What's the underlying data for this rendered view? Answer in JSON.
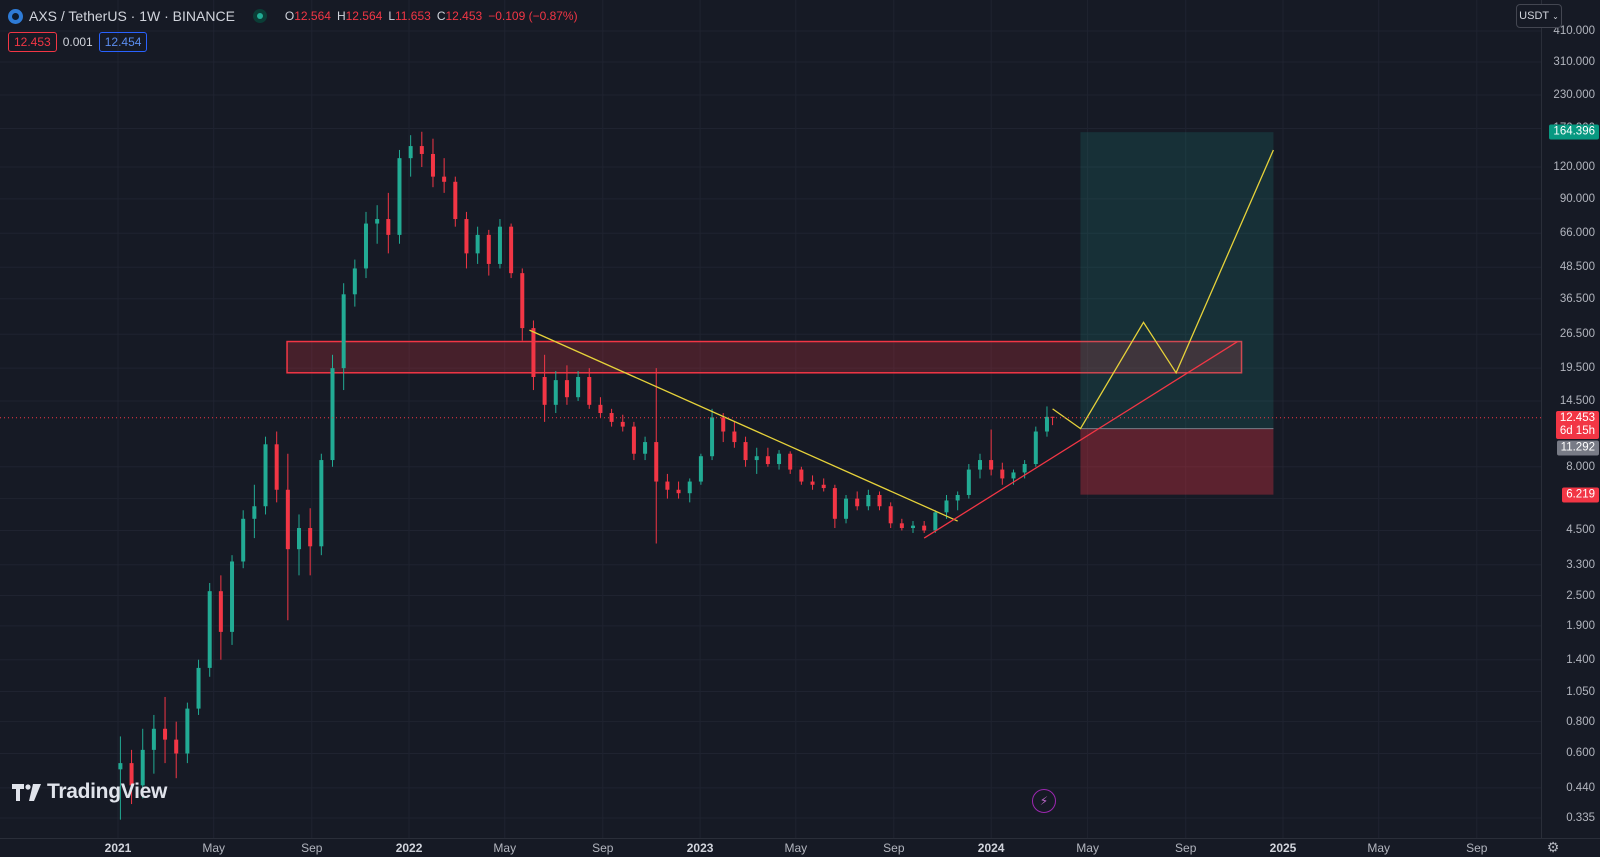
{
  "header": {
    "symbol": "AXS / TetherUS · 1W · BINANCE",
    "ohlc": [
      {
        "key": "O",
        "value": "12.564"
      },
      {
        "key": "H",
        "value": "12.564"
      },
      {
        "key": "L",
        "value": "11.653"
      },
      {
        "key": "C",
        "value": "12.453"
      }
    ],
    "change": "−0.109 (−0.87%)"
  },
  "quote": {
    "sell": "12.453",
    "spread": "0.001",
    "buy": "12.454"
  },
  "currency_button": "USDT",
  "brand": "TradingView",
  "colors": {
    "up": "#22ab94",
    "down": "#f23645",
    "trend_yellow": "#e6d23a",
    "background": "#161a25"
  },
  "price_axis": [
    "410.000",
    "310.000",
    "230.000",
    "170.000",
    "120.000",
    "90.000",
    "66.000",
    "48.500",
    "36.500",
    "26.500",
    "19.500",
    "14.500",
    "8.000",
    "6.000",
    "4.500",
    "3.300",
    "2.500",
    "1.900",
    "1.400",
    "1.050",
    "0.800",
    "0.600",
    "0.440",
    "0.335"
  ],
  "price_tags": {
    "target": "164.396",
    "current": "12.453",
    "countdown": "6d 15h",
    "entry": "11.292",
    "stop": "6.219"
  },
  "time_axis": [
    {
      "label": "2021",
      "bold": true
    },
    {
      "label": "May",
      "bold": false
    },
    {
      "label": "Sep",
      "bold": false
    },
    {
      "label": "2022",
      "bold": true
    },
    {
      "label": "May",
      "bold": false
    },
    {
      "label": "Sep",
      "bold": false
    },
    {
      "label": "2023",
      "bold": true
    },
    {
      "label": "May",
      "bold": false
    },
    {
      "label": "Sep",
      "bold": false
    },
    {
      "label": "2024",
      "bold": true
    },
    {
      "label": "May",
      "bold": false
    },
    {
      "label": "Sep",
      "bold": false
    },
    {
      "label": "2025",
      "bold": true
    },
    {
      "label": "May",
      "bold": false
    },
    {
      "label": "Sep",
      "bold": false
    }
  ],
  "chart_data": {
    "type": "candlestick",
    "symbol": "AXS/USDT",
    "interval": "1W",
    "y_scale": "log",
    "ylim": [
      0.32,
      420
    ],
    "candles": [
      {
        "date": "2021-01-04",
        "o": 0.52,
        "h": 0.7,
        "l": 0.33,
        "c": 0.55
      },
      {
        "date": "2021-01-18",
        "o": 0.55,
        "h": 0.62,
        "l": 0.38,
        "c": 0.45
      },
      {
        "date": "2021-02-01",
        "o": 0.45,
        "h": 0.75,
        "l": 0.4,
        "c": 0.62
      },
      {
        "date": "2021-02-15",
        "o": 0.62,
        "h": 0.85,
        "l": 0.5,
        "c": 0.75
      },
      {
        "date": "2021-03-01",
        "o": 0.75,
        "h": 1.0,
        "l": 0.55,
        "c": 0.68
      },
      {
        "date": "2021-03-15",
        "o": 0.68,
        "h": 0.8,
        "l": 0.48,
        "c": 0.6
      },
      {
        "date": "2021-03-29",
        "o": 0.6,
        "h": 0.95,
        "l": 0.55,
        "c": 0.9
      },
      {
        "date": "2021-04-12",
        "o": 0.9,
        "h": 1.4,
        "l": 0.85,
        "c": 1.3
      },
      {
        "date": "2021-04-26",
        "o": 1.3,
        "h": 2.8,
        "l": 1.2,
        "c": 2.6
      },
      {
        "date": "2021-05-10",
        "o": 2.6,
        "h": 3.0,
        "l": 1.4,
        "c": 1.8
      },
      {
        "date": "2021-05-24",
        "o": 1.8,
        "h": 3.6,
        "l": 1.6,
        "c": 3.4
      },
      {
        "date": "2021-06-07",
        "o": 3.4,
        "h": 5.4,
        "l": 3.2,
        "c": 5.0
      },
      {
        "date": "2021-06-21",
        "o": 5.0,
        "h": 6.8,
        "l": 4.2,
        "c": 5.6
      },
      {
        "date": "2021-07-05",
        "o": 5.6,
        "h": 10.5,
        "l": 5.2,
        "c": 9.8
      },
      {
        "date": "2021-07-19",
        "o": 9.8,
        "h": 11.0,
        "l": 5.8,
        "c": 6.5
      },
      {
        "date": "2021-08-02",
        "o": 6.5,
        "h": 9.0,
        "l": 2.0,
        "c": 3.8
      },
      {
        "date": "2021-08-16",
        "o": 3.8,
        "h": 5.2,
        "l": 3.0,
        "c": 4.6
      },
      {
        "date": "2021-08-30",
        "o": 4.6,
        "h": 5.5,
        "l": 3.0,
        "c": 3.9
      },
      {
        "date": "2021-09-13",
        "o": 3.9,
        "h": 9.0,
        "l": 3.6,
        "c": 8.5
      },
      {
        "date": "2021-09-27",
        "o": 8.5,
        "h": 22.0,
        "l": 8.0,
        "c": 19.5
      },
      {
        "date": "2021-10-11",
        "o": 19.5,
        "h": 42.0,
        "l": 16.0,
        "c": 38.0
      },
      {
        "date": "2021-10-25",
        "o": 38.0,
        "h": 52.0,
        "l": 34.0,
        "c": 48.0
      },
      {
        "date": "2021-11-08",
        "o": 48.0,
        "h": 80.0,
        "l": 44.0,
        "c": 72.0
      },
      {
        "date": "2021-11-22",
        "o": 72.0,
        "h": 85.0,
        "l": 60.0,
        "c": 75.0
      },
      {
        "date": "2021-12-06",
        "o": 75.0,
        "h": 95.0,
        "l": 55.0,
        "c": 65.0
      },
      {
        "date": "2021-12-20",
        "o": 65.0,
        "h": 140.0,
        "l": 60.0,
        "c": 130.0
      },
      {
        "date": "2022-01-03",
        "o": 130.0,
        "h": 160.0,
        "l": 110.0,
        "c": 145.0
      },
      {
        "date": "2022-01-17",
        "o": 145.0,
        "h": 165.0,
        "l": 120.0,
        "c": 135.0
      },
      {
        "date": "2022-01-31",
        "o": 135.0,
        "h": 155.0,
        "l": 100.0,
        "c": 110.0
      },
      {
        "date": "2022-02-14",
        "o": 110.0,
        "h": 130.0,
        "l": 95.0,
        "c": 105.0
      },
      {
        "date": "2022-02-28",
        "o": 105.0,
        "h": 110.0,
        "l": 70.0,
        "c": 75.0
      },
      {
        "date": "2022-03-14",
        "o": 75.0,
        "h": 80.0,
        "l": 48.0,
        "c": 55.0
      },
      {
        "date": "2022-03-28",
        "o": 55.0,
        "h": 70.0,
        "l": 50.0,
        "c": 65.0
      },
      {
        "date": "2022-04-11",
        "o": 65.0,
        "h": 68.0,
        "l": 45.0,
        "c": 50.0
      },
      {
        "date": "2022-04-25",
        "o": 50.0,
        "h": 75.0,
        "l": 48.0,
        "c": 70.0
      },
      {
        "date": "2022-05-09",
        "o": 70.0,
        "h": 72.0,
        "l": 44.0,
        "c": 46.0
      },
      {
        "date": "2022-05-23",
        "o": 46.0,
        "h": 48.0,
        "l": 25.0,
        "c": 28.0
      },
      {
        "date": "2022-06-06",
        "o": 28.0,
        "h": 30.0,
        "l": 16.0,
        "c": 18.0
      },
      {
        "date": "2022-06-20",
        "o": 18.0,
        "h": 22.0,
        "l": 12.0,
        "c": 14.0
      },
      {
        "date": "2022-07-04",
        "o": 14.0,
        "h": 19.0,
        "l": 13.0,
        "c": 17.5
      },
      {
        "date": "2022-07-18",
        "o": 17.5,
        "h": 20.0,
        "l": 14.0,
        "c": 15.0
      },
      {
        "date": "2022-08-01",
        "o": 15.0,
        "h": 19.0,
        "l": 14.5,
        "c": 18.0
      },
      {
        "date": "2022-08-15",
        "o": 18.0,
        "h": 19.5,
        "l": 13.5,
        "c": 14.0
      },
      {
        "date": "2022-08-29",
        "o": 14.0,
        "h": 15.0,
        "l": 12.5,
        "c": 13.0
      },
      {
        "date": "2022-09-12",
        "o": 13.0,
        "h": 13.5,
        "l": 11.5,
        "c": 12.0
      },
      {
        "date": "2022-09-26",
        "o": 12.0,
        "h": 12.8,
        "l": 11.0,
        "c": 11.5
      },
      {
        "date": "2022-10-10",
        "o": 11.5,
        "h": 12.0,
        "l": 8.5,
        "c": 9.0
      },
      {
        "date": "2022-10-24",
        "o": 9.0,
        "h": 10.5,
        "l": 8.5,
        "c": 10.0
      },
      {
        "date": "2022-11-07",
        "o": 10.0,
        "h": 19.5,
        "l": 4.0,
        "c": 7.0
      },
      {
        "date": "2022-11-21",
        "o": 7.0,
        "h": 7.5,
        "l": 6.0,
        "c": 6.5
      },
      {
        "date": "2022-12-05",
        "o": 6.5,
        "h": 7.0,
        "l": 6.0,
        "c": 6.3
      },
      {
        "date": "2022-12-19",
        "o": 6.3,
        "h": 7.2,
        "l": 5.8,
        "c": 7.0
      },
      {
        "date": "2023-01-02",
        "o": 7.0,
        "h": 9.0,
        "l": 6.8,
        "c": 8.8
      },
      {
        "date": "2023-01-16",
        "o": 8.8,
        "h": 13.5,
        "l": 8.5,
        "c": 12.5
      },
      {
        "date": "2023-01-30",
        "o": 12.5,
        "h": 13.0,
        "l": 10.0,
        "c": 11.0
      },
      {
        "date": "2023-02-13",
        "o": 11.0,
        "h": 12.0,
        "l": 9.5,
        "c": 10.0
      },
      {
        "date": "2023-02-27",
        "o": 10.0,
        "h": 10.5,
        "l": 8.0,
        "c": 8.5
      },
      {
        "date": "2023-03-13",
        "o": 8.5,
        "h": 9.5,
        "l": 7.5,
        "c": 8.8
      },
      {
        "date": "2023-03-27",
        "o": 8.8,
        "h": 9.5,
        "l": 8.0,
        "c": 8.2
      },
      {
        "date": "2023-04-10",
        "o": 8.2,
        "h": 9.3,
        "l": 7.8,
        "c": 9.0
      },
      {
        "date": "2023-04-24",
        "o": 9.0,
        "h": 9.2,
        "l": 7.5,
        "c": 7.8
      },
      {
        "date": "2023-05-08",
        "o": 7.8,
        "h": 8.0,
        "l": 6.8,
        "c": 7.0
      },
      {
        "date": "2023-05-22",
        "o": 7.0,
        "h": 7.4,
        "l": 6.5,
        "c": 6.8
      },
      {
        "date": "2023-06-05",
        "o": 6.8,
        "h": 7.2,
        "l": 6.4,
        "c": 6.6
      },
      {
        "date": "2023-06-19",
        "o": 6.6,
        "h": 6.8,
        "l": 4.6,
        "c": 5.0
      },
      {
        "date": "2023-07-03",
        "o": 5.0,
        "h": 6.2,
        "l": 4.8,
        "c": 6.0
      },
      {
        "date": "2023-07-17",
        "o": 6.0,
        "h": 6.4,
        "l": 5.4,
        "c": 5.6
      },
      {
        "date": "2023-07-31",
        "o": 5.6,
        "h": 6.5,
        "l": 5.4,
        "c": 6.2
      },
      {
        "date": "2023-08-14",
        "o": 6.2,
        "h": 6.4,
        "l": 5.4,
        "c": 5.6
      },
      {
        "date": "2023-08-28",
        "o": 5.6,
        "h": 5.8,
        "l": 4.6,
        "c": 4.8
      },
      {
        "date": "2023-09-11",
        "o": 4.8,
        "h": 5.0,
        "l": 4.5,
        "c": 4.6
      },
      {
        "date": "2023-09-25",
        "o": 4.6,
        "h": 4.9,
        "l": 4.4,
        "c": 4.7
      },
      {
        "date": "2023-10-09",
        "o": 4.7,
        "h": 4.9,
        "l": 4.4,
        "c": 4.5
      },
      {
        "date": "2023-10-23",
        "o": 4.5,
        "h": 5.4,
        "l": 4.4,
        "c": 5.3
      },
      {
        "date": "2023-11-06",
        "o": 5.3,
        "h": 6.2,
        "l": 5.0,
        "c": 5.9
      },
      {
        "date": "2023-11-20",
        "o": 5.9,
        "h": 6.4,
        "l": 5.4,
        "c": 6.2
      },
      {
        "date": "2023-12-04",
        "o": 6.2,
        "h": 8.2,
        "l": 6.0,
        "c": 7.8
      },
      {
        "date": "2023-12-18",
        "o": 7.8,
        "h": 9.0,
        "l": 7.2,
        "c": 8.5
      },
      {
        "date": "2024-01-01",
        "o": 8.5,
        "h": 11.2,
        "l": 7.4,
        "c": 7.8
      },
      {
        "date": "2024-01-15",
        "o": 7.8,
        "h": 8.3,
        "l": 6.8,
        "c": 7.2
      },
      {
        "date": "2024-01-29",
        "o": 7.2,
        "h": 7.8,
        "l": 6.8,
        "c": 7.6
      },
      {
        "date": "2024-02-12",
        "o": 7.6,
        "h": 8.5,
        "l": 7.2,
        "c": 8.2
      },
      {
        "date": "2024-02-26",
        "o": 8.2,
        "h": 11.5,
        "l": 8.0,
        "c": 11.0
      },
      {
        "date": "2024-03-11",
        "o": 11.0,
        "h": 13.8,
        "l": 10.5,
        "c": 12.56
      },
      {
        "date": "2024-03-18",
        "o": 12.564,
        "h": 12.564,
        "l": 11.653,
        "c": 12.453
      }
    ],
    "drawings": {
      "resistance_zone": {
        "from_date": "2021-08-01",
        "to_date": "2024-11-10",
        "low": 18.7,
        "high": 24.8
      },
      "descending_trendline": {
        "from": {
          "date": "2022-06-01",
          "price": 27.5
        },
        "to": {
          "date": "2023-11-20",
          "price": 4.9
        }
      },
      "ascending_trendline": {
        "from": {
          "date": "2023-10-09",
          "price": 4.2
        },
        "to": {
          "date": "2024-11-05",
          "price": 24.8
        }
      },
      "long_position": {
        "from_date": "2024-04-22",
        "to_date": "2024-12-20",
        "entry": 11.292,
        "target": 164.396,
        "stop": 6.219
      },
      "projection_path": [
        {
          "date": "2024-03-18",
          "price": 13.5
        },
        {
          "date": "2024-04-22",
          "price": 11.292
        },
        {
          "date": "2024-07-10",
          "price": 29.5
        },
        {
          "date": "2024-08-20",
          "price": 18.7
        },
        {
          "date": "2024-12-20",
          "price": 140.0
        }
      ]
    }
  }
}
